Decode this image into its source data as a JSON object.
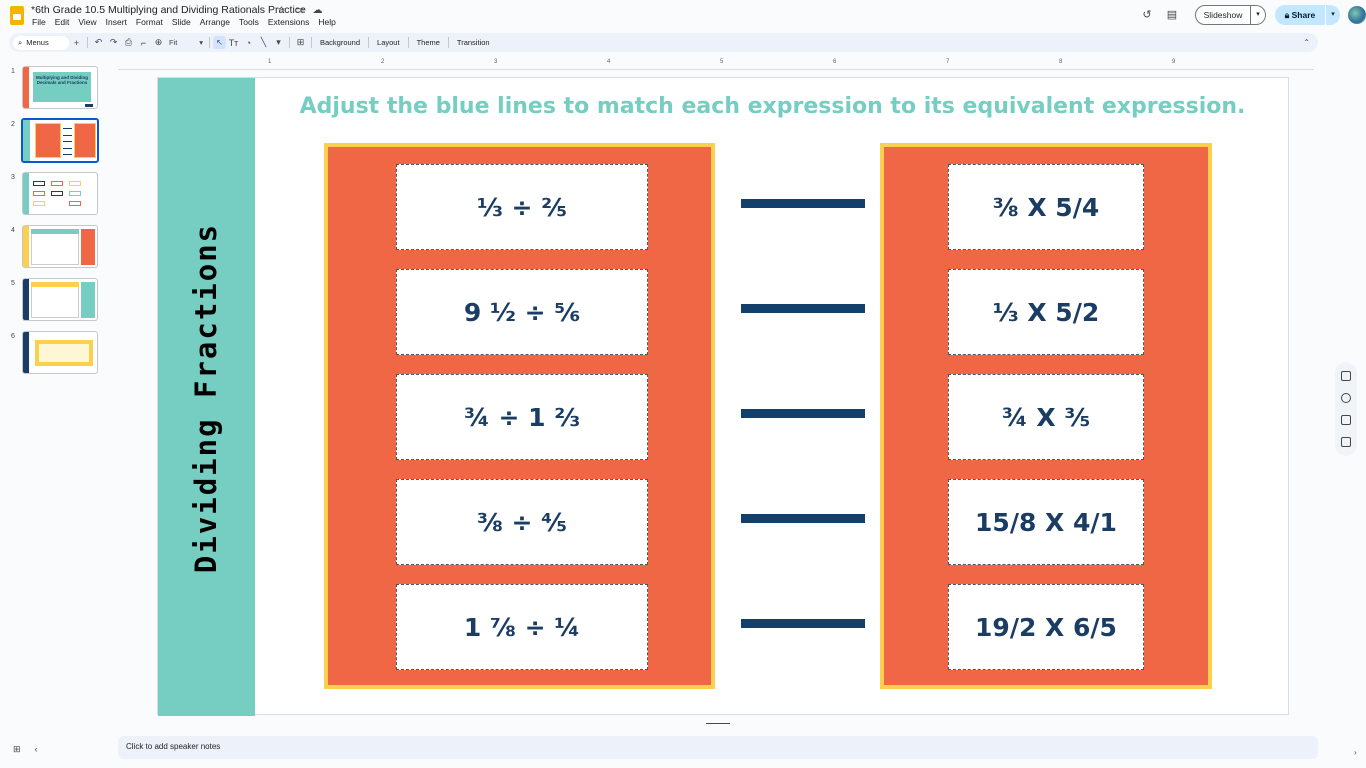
{
  "window": {
    "doc_title": "*6th Grade 10.5 Multiplying and Dividing Rationals Practice",
    "menu": [
      "File",
      "Edit",
      "View",
      "Insert",
      "Format",
      "Slide",
      "Arrange",
      "Tools",
      "Extensions",
      "Help"
    ]
  },
  "header": {
    "slideshow_label": "Slideshow",
    "share_label": "Share"
  },
  "toolbar": {
    "menus_label": "Menus",
    "zoom_value": "Fit",
    "background_label": "Background",
    "layout_label": "Layout",
    "theme_label": "Theme",
    "transition_label": "Transition"
  },
  "ruler": {
    "marks": [
      "1",
      "2",
      "3",
      "4",
      "5",
      "6",
      "7",
      "8",
      "9"
    ]
  },
  "filmstrip": {
    "slides": [
      {
        "number": "1",
        "text": "Multiplying and Dividing Decimals and Fractions"
      },
      {
        "number": "2",
        "text": ""
      },
      {
        "number": "3",
        "text": ""
      },
      {
        "number": "4",
        "text": ""
      },
      {
        "number": "5",
        "text": ""
      },
      {
        "number": "6",
        "text": ""
      }
    ],
    "active_index": 1
  },
  "slide": {
    "side_title": "Dividing Fractions",
    "instruction": "Adjust the blue lines to match each expression to its equivalent expression.",
    "left_expressions": [
      "⅓ ÷ ⅖",
      "9 ½ ÷ ⅚",
      "¾ ÷ 1 ⅔",
      "⅜ ÷ ⅘",
      "1 ⅞ ÷ ¼"
    ],
    "right_expressions": [
      "⅜ X 5/4",
      "⅓ X 5/2",
      "¾ X ⅗",
      "15/8 X 4/1",
      "19/2 X 6/5"
    ]
  },
  "notes": {
    "placeholder": "Click to add speaker notes"
  },
  "colors": {
    "teal": "#76cdc2",
    "orange": "#ef6744",
    "yellow": "#fbd04e",
    "navy": "#1b3d63"
  }
}
